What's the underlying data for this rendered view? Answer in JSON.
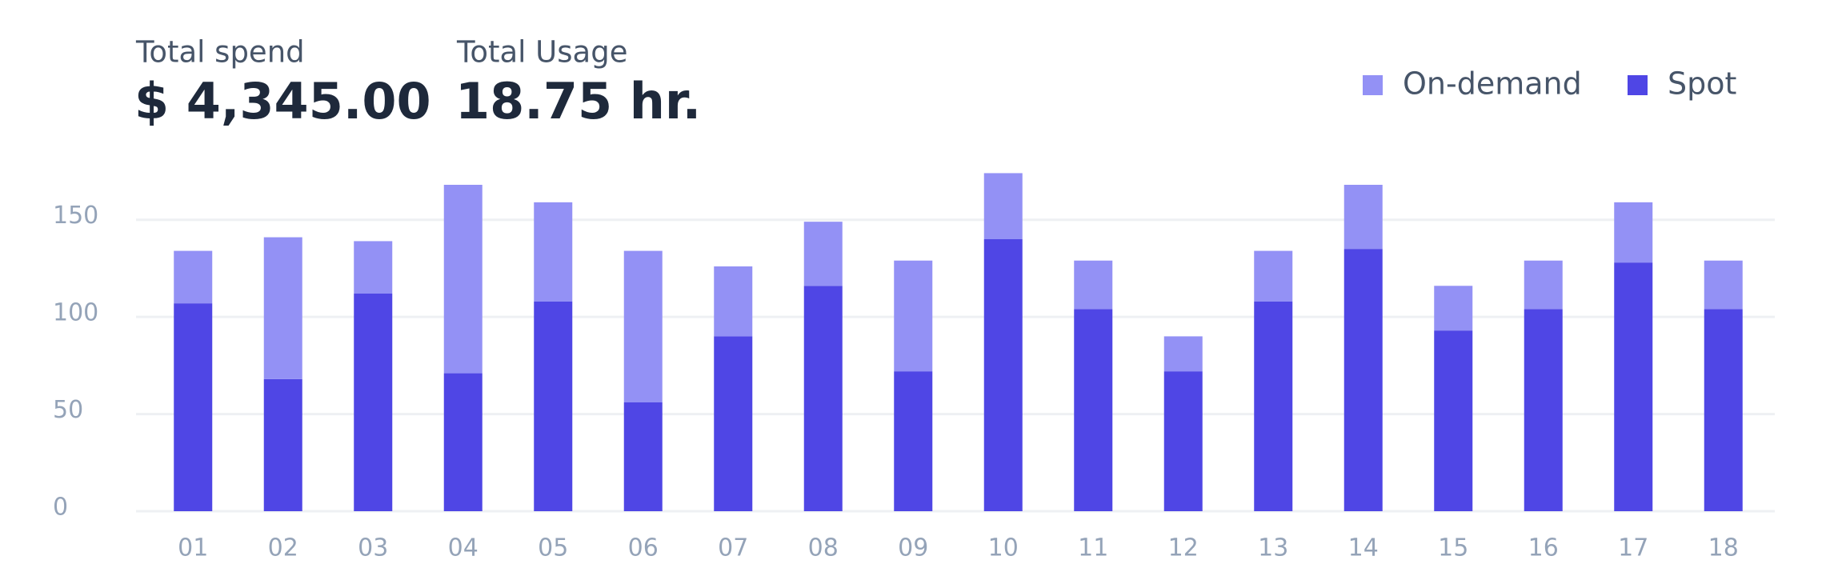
{
  "stats": [
    {
      "label": "Total spend",
      "value": "$ 4,345.00"
    },
    {
      "label": "Total Usage",
      "value": "18.75 hr."
    }
  ],
  "chart_data": {
    "type": "stacked-bar",
    "categories": [
      "01",
      "02",
      "03",
      "04",
      "05",
      "06",
      "07",
      "08",
      "09",
      "10",
      "11",
      "12",
      "13",
      "14",
      "15",
      "16",
      "17",
      "18"
    ],
    "series": [
      {
        "name": "On-demand",
        "color": "#9391f5",
        "values": [
          27,
          73,
          27,
          97,
          51,
          78,
          36,
          33,
          57,
          34,
          25,
          18,
          26,
          33,
          23,
          25,
          31,
          25
        ]
      },
      {
        "name": "Spot",
        "color": "#4f46e5",
        "values": [
          107,
          68,
          112,
          71,
          108,
          56,
          90,
          116,
          72,
          140,
          104,
          72,
          108,
          135,
          93,
          104,
          128,
          104
        ]
      }
    ],
    "ylim": [
      0,
      175
    ],
    "yticks": [
      0,
      50,
      100,
      150
    ],
    "grid": true,
    "legend": "top-right"
  }
}
